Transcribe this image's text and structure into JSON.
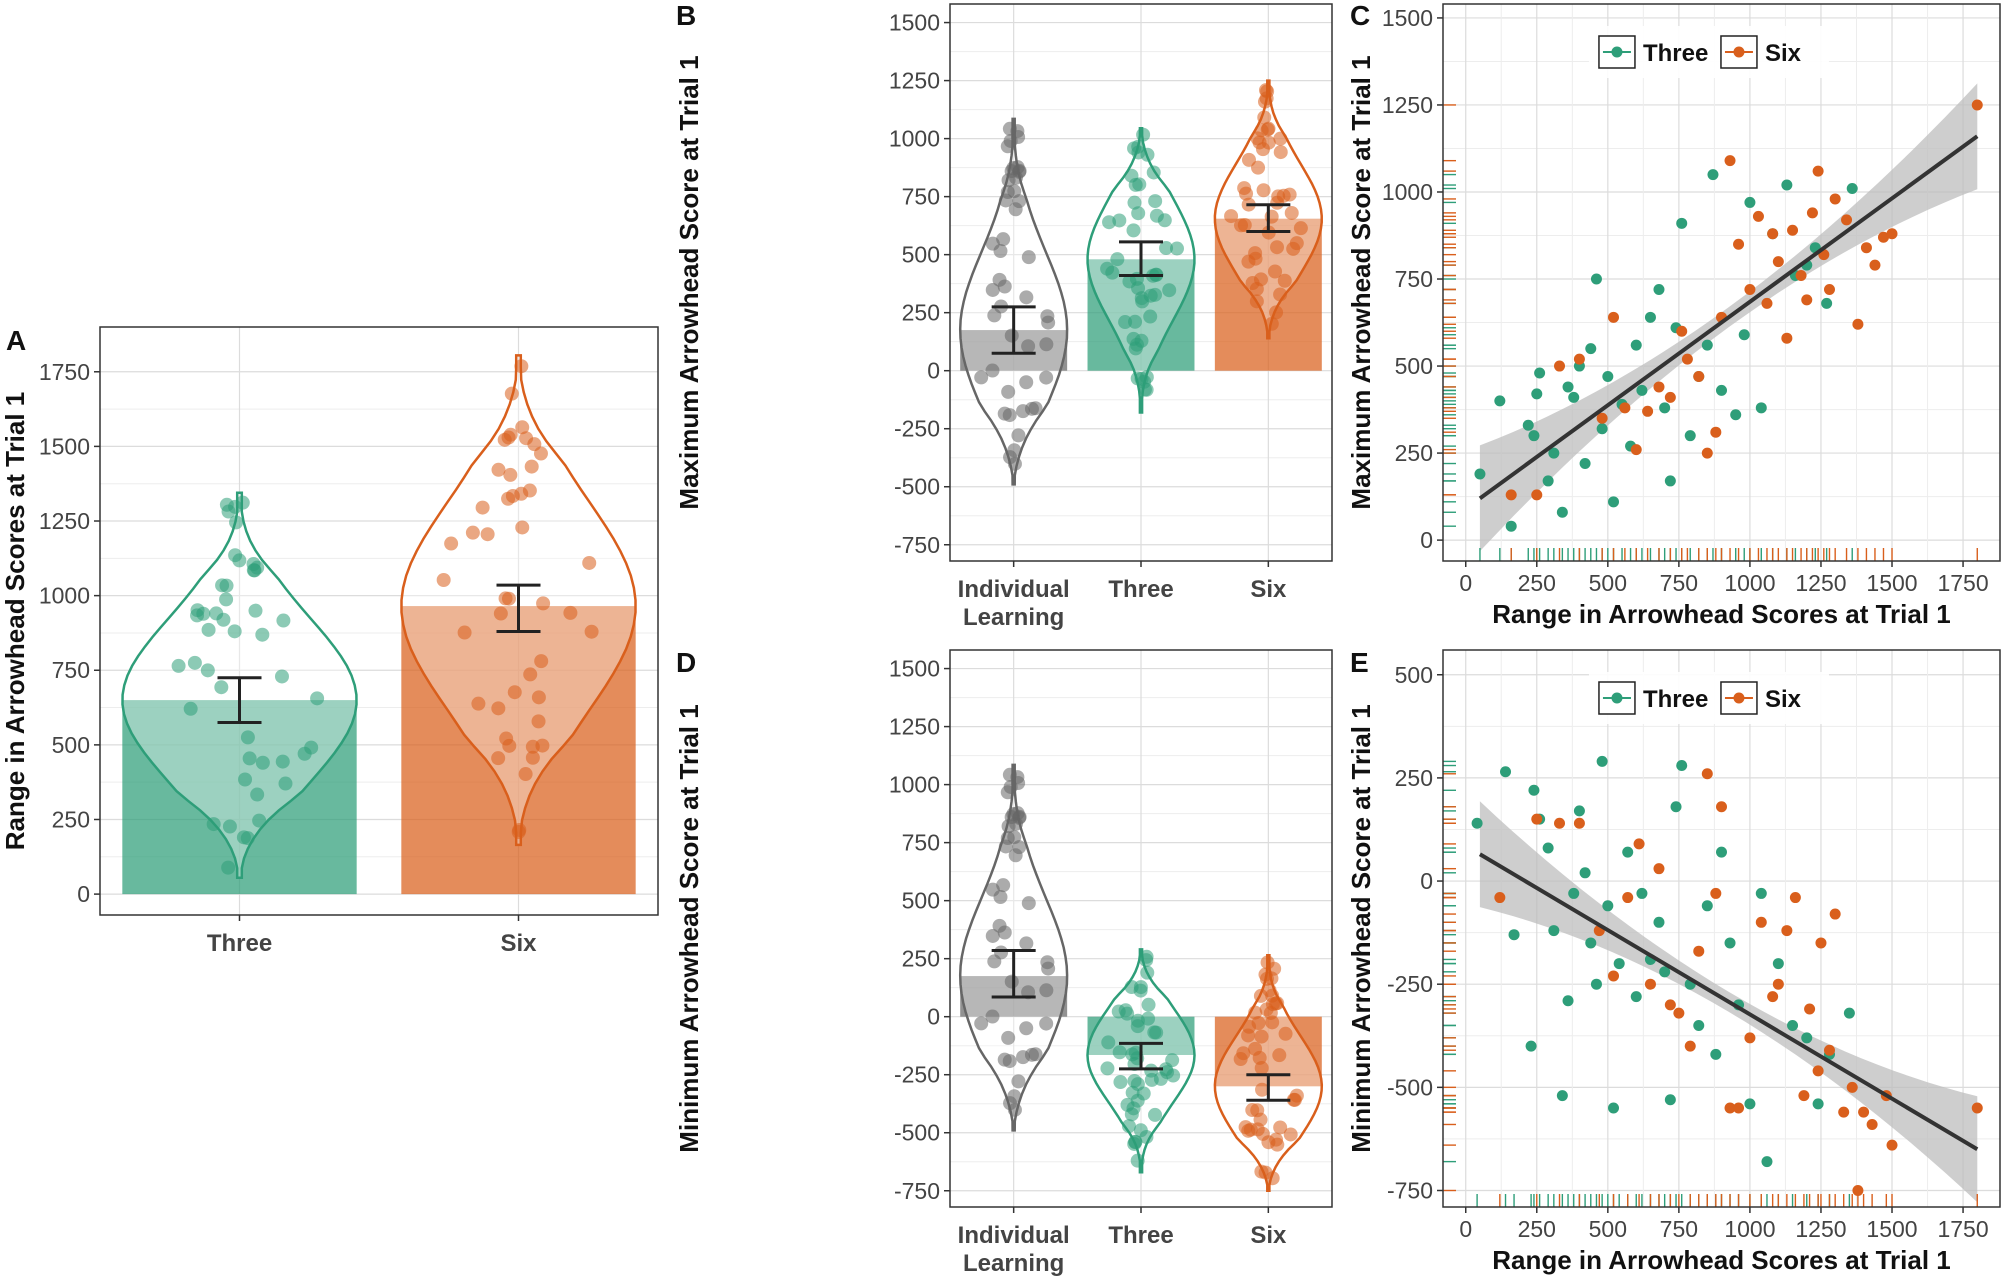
{
  "colors": {
    "three": "#2e9e79",
    "three_fill": "#8fcdb5",
    "six": "#d95f1c",
    "six_fill": "#ea9d72",
    "individual": "#666666",
    "individual_fill": "#9a9a9a",
    "fit": "#333333",
    "ribbon": "#bdbdbd"
  },
  "chart_data": [
    {
      "panel": "A",
      "type": "bar",
      "ylabel": "Range in Arrowhead Scores at Trial 1",
      "xlabel": "",
      "ylim": [
        -70,
        1900
      ],
      "yticks": [
        0,
        250,
        500,
        750,
        1000,
        1250,
        1500,
        1750
      ],
      "categories": [
        "Three",
        "Six"
      ],
      "values": [
        650,
        965
      ],
      "ci": [
        [
          575,
          725
        ],
        [
          880,
          1035
        ]
      ],
      "violin_range": [
        [
          55,
          1345
        ],
        [
          165,
          1805
        ]
      ]
    },
    {
      "panel": "B",
      "type": "bar",
      "ylabel": "Maximum Arrowhead Score at Trial 1",
      "xlabel": "",
      "ylim": [
        -820,
        1580
      ],
      "yticks": [
        -750,
        -500,
        -250,
        0,
        250,
        500,
        750,
        1000,
        1250,
        1500
      ],
      "categories": [
        "Individual Learning",
        "Three",
        "Six"
      ],
      "values": [
        175,
        480,
        655
      ],
      "ci": [
        [
          75,
          275
        ],
        [
          410,
          555
        ],
        [
          600,
          715
        ]
      ],
      "violin_range": [
        [
          -490,
          1085
        ],
        [
          -180,
          1045
        ],
        [
          140,
          1250
        ]
      ]
    },
    {
      "panel": "D",
      "type": "bar",
      "ylabel": "Minimum Arrowhead Score at Trial 1",
      "xlabel": "",
      "ylim": [
        -820,
        1580
      ],
      "yticks": [
        -750,
        -500,
        -250,
        0,
        250,
        500,
        750,
        1000,
        1250,
        1500
      ],
      "categories": [
        "Individual Learning",
        "Three",
        "Six"
      ],
      "values": [
        175,
        -165,
        -300
      ],
      "ci": [
        [
          85,
          285
        ],
        [
          -225,
          -115
        ],
        [
          -360,
          -250
        ]
      ],
      "violin_range": [
        [
          -490,
          1085
        ],
        [
          -670,
          290
        ],
        [
          -750,
          265
        ]
      ]
    },
    {
      "panel": "C",
      "type": "scatter",
      "xlabel": "Range in Arrowhead Scores at Trial 1",
      "ylabel": "Maximum Arrowhead Score at Trial 1",
      "xlim": [
        -80,
        1880
      ],
      "ylim": [
        -60,
        1540
      ],
      "xticks": [
        0,
        250,
        500,
        750,
        1000,
        1250,
        1500,
        1750
      ],
      "yticks": [
        0,
        250,
        500,
        750,
        1000,
        1250,
        1500
      ],
      "legend": [
        "Three",
        "Six"
      ],
      "legend_position": "top",
      "fit_line": {
        "x": [
          50,
          1800
        ],
        "y": [
          120,
          1160
        ]
      },
      "series": [
        {
          "name": "Three",
          "points": [
            [
              50,
              190
            ],
            [
              120,
              400
            ],
            [
              160,
              40
            ],
            [
              220,
              330
            ],
            [
              240,
              300
            ],
            [
              250,
              420
            ],
            [
              260,
              480
            ],
            [
              290,
              170
            ],
            [
              310,
              250
            ],
            [
              340,
              80
            ],
            [
              360,
              440
            ],
            [
              380,
              410
            ],
            [
              400,
              500
            ],
            [
              420,
              220
            ],
            [
              440,
              550
            ],
            [
              460,
              750
            ],
            [
              480,
              320
            ],
            [
              500,
              470
            ],
            [
              520,
              110
            ],
            [
              550,
              390
            ],
            [
              580,
              270
            ],
            [
              600,
              560
            ],
            [
              620,
              430
            ],
            [
              650,
              640
            ],
            [
              680,
              720
            ],
            [
              700,
              380
            ],
            [
              720,
              170
            ],
            [
              740,
              610
            ],
            [
              760,
              910
            ],
            [
              790,
              300
            ],
            [
              820,
              470
            ],
            [
              850,
              560
            ],
            [
              870,
              1050
            ],
            [
              900,
              430
            ],
            [
              950,
              360
            ],
            [
              980,
              590
            ],
            [
              1000,
              970
            ],
            [
              1040,
              380
            ],
            [
              1080,
              880
            ],
            [
              1130,
              1020
            ],
            [
              1160,
              760
            ],
            [
              1200,
              790
            ],
            [
              1230,
              840
            ],
            [
              1270,
              680
            ],
            [
              1360,
              1010
            ]
          ]
        },
        {
          "name": "Six",
          "points": [
            [
              160,
              130
            ],
            [
              250,
              130
            ],
            [
              330,
              500
            ],
            [
              400,
              520
            ],
            [
              480,
              350
            ],
            [
              520,
              640
            ],
            [
              560,
              380
            ],
            [
              600,
              260
            ],
            [
              640,
              370
            ],
            [
              680,
              440
            ],
            [
              720,
              410
            ],
            [
              760,
              600
            ],
            [
              780,
              520
            ],
            [
              820,
              470
            ],
            [
              850,
              250
            ],
            [
              880,
              310
            ],
            [
              900,
              640
            ],
            [
              930,
              1090
            ],
            [
              960,
              850
            ],
            [
              1000,
              720
            ],
            [
              1030,
              930
            ],
            [
              1060,
              680
            ],
            [
              1080,
              880
            ],
            [
              1100,
              800
            ],
            [
              1130,
              580
            ],
            [
              1150,
              890
            ],
            [
              1180,
              760
            ],
            [
              1200,
              690
            ],
            [
              1220,
              940
            ],
            [
              1240,
              1060
            ],
            [
              1260,
              820
            ],
            [
              1280,
              720
            ],
            [
              1300,
              980
            ],
            [
              1340,
              920
            ],
            [
              1380,
              620
            ],
            [
              1410,
              840
            ],
            [
              1440,
              790
            ],
            [
              1470,
              870
            ],
            [
              1500,
              880
            ],
            [
              1800,
              1250
            ]
          ]
        }
      ]
    },
    {
      "panel": "E",
      "type": "scatter",
      "xlabel": "Range in Arrowhead Scores at Trial 1",
      "ylabel": "Minimum Arrowhead Score at Trial 1",
      "xlim": [
        -80,
        1880
      ],
      "ylim": [
        -790,
        560
      ],
      "xticks": [
        0,
        250,
        500,
        750,
        1000,
        1250,
        1500,
        1750
      ],
      "yticks": [
        -750,
        -500,
        -250,
        0,
        250,
        500
      ],
      "legend": [
        "Three",
        "Six"
      ],
      "legend_position": "top",
      "fit_line": {
        "x": [
          50,
          1800
        ],
        "y": [
          65,
          -650
        ]
      },
      "series": [
        {
          "name": "Three",
          "points": [
            [
              40,
              140
            ],
            [
              140,
              265
            ],
            [
              170,
              -130
            ],
            [
              230,
              -400
            ],
            [
              240,
              220
            ],
            [
              260,
              150
            ],
            [
              290,
              80
            ],
            [
              310,
              -120
            ],
            [
              340,
              -520
            ],
            [
              360,
              -290
            ],
            [
              380,
              -30
            ],
            [
              400,
              170
            ],
            [
              420,
              20
            ],
            [
              440,
              -150
            ],
            [
              460,
              -250
            ],
            [
              480,
              290
            ],
            [
              500,
              -60
            ],
            [
              520,
              -550
            ],
            [
              540,
              -200
            ],
            [
              570,
              70
            ],
            [
              600,
              -280
            ],
            [
              620,
              -30
            ],
            [
              650,
              -190
            ],
            [
              680,
              -100
            ],
            [
              700,
              -220
            ],
            [
              720,
              -530
            ],
            [
              740,
              180
            ],
            [
              760,
              280
            ],
            [
              790,
              -250
            ],
            [
              820,
              -350
            ],
            [
              850,
              -60
            ],
            [
              880,
              -420
            ],
            [
              900,
              70
            ],
            [
              930,
              -150
            ],
            [
              960,
              -300
            ],
            [
              1000,
              -540
            ],
            [
              1040,
              -30
            ],
            [
              1060,
              -680
            ],
            [
              1100,
              -200
            ],
            [
              1150,
              -350
            ],
            [
              1200,
              -380
            ],
            [
              1240,
              -540
            ],
            [
              1280,
              -420
            ],
            [
              1350,
              -320
            ]
          ]
        },
        {
          "name": "Six",
          "points": [
            [
              120,
              -40
            ],
            [
              250,
              150
            ],
            [
              330,
              140
            ],
            [
              400,
              140
            ],
            [
              470,
              -120
            ],
            [
              520,
              -230
            ],
            [
              570,
              -40
            ],
            [
              610,
              90
            ],
            [
              650,
              -250
            ],
            [
              680,
              30
            ],
            [
              720,
              -300
            ],
            [
              750,
              -320
            ],
            [
              790,
              -400
            ],
            [
              820,
              -170
            ],
            [
              850,
              260
            ],
            [
              880,
              -30
            ],
            [
              900,
              180
            ],
            [
              930,
              -550
            ],
            [
              960,
              -550
            ],
            [
              1000,
              -380
            ],
            [
              1040,
              -100
            ],
            [
              1080,
              -280
            ],
            [
              1100,
              -250
            ],
            [
              1130,
              -120
            ],
            [
              1160,
              -40
            ],
            [
              1190,
              -520
            ],
            [
              1210,
              -310
            ],
            [
              1240,
              -460
            ],
            [
              1250,
              -150
            ],
            [
              1280,
              -410
            ],
            [
              1300,
              -80
            ],
            [
              1330,
              -560
            ],
            [
              1360,
              -500
            ],
            [
              1380,
              -750
            ],
            [
              1400,
              -560
            ],
            [
              1430,
              -590
            ],
            [
              1480,
              -520
            ],
            [
              1500,
              -640
            ],
            [
              1800,
              -550
            ]
          ]
        }
      ]
    }
  ]
}
